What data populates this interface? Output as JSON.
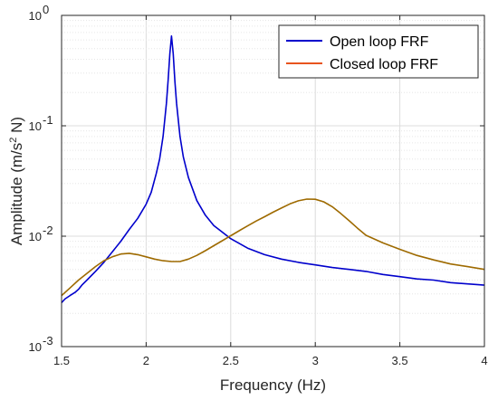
{
  "chart_data": {
    "type": "line",
    "title": "",
    "xlabel": "Frequency (Hz)",
    "ylabel": {
      "prefix": "Amplitude (m/s",
      "superscript": "2",
      "suffix": " N)"
    },
    "xlim": [
      1.5,
      4
    ],
    "ylim": [
      0.001,
      1
    ],
    "yscale": "log",
    "xticks": [
      1.5,
      2,
      2.5,
      3,
      3.5,
      4
    ],
    "xtick_labels": [
      "1.5",
      "2",
      "2.5",
      "3",
      "3.5",
      "4"
    ],
    "yticks": [
      {
        "value": 0.001,
        "base": "10",
        "exp": "-3"
      },
      {
        "value": 0.01,
        "base": "10",
        "exp": "-2"
      },
      {
        "value": 0.1,
        "base": "10",
        "exp": "-1"
      },
      {
        "value": 1,
        "base": "10",
        "exp": "0"
      }
    ],
    "grid": true,
    "legend": "top-right",
    "series": [
      {
        "name": "Open loop FRF",
        "color": "#0000cc",
        "x": [
          1.5,
          1.52,
          1.55,
          1.58,
          1.6,
          1.62,
          1.65,
          1.7,
          1.75,
          1.8,
          1.85,
          1.9,
          1.95,
          2.0,
          2.03,
          2.06,
          2.08,
          2.1,
          2.12,
          2.13,
          2.14,
          2.15,
          2.16,
          2.17,
          2.18,
          2.2,
          2.22,
          2.25,
          2.3,
          2.35,
          2.4,
          2.5,
          2.6,
          2.7,
          2.8,
          2.9,
          3.0,
          3.1,
          3.2,
          3.3,
          3.4,
          3.5,
          3.6,
          3.7,
          3.8,
          3.9,
          4.0
        ],
        "y": [
          0.0025,
          0.0027,
          0.0029,
          0.0031,
          0.0033,
          0.0036,
          0.004,
          0.0048,
          0.0058,
          0.0072,
          0.009,
          0.0115,
          0.0145,
          0.0195,
          0.025,
          0.037,
          0.05,
          0.08,
          0.16,
          0.26,
          0.45,
          0.65,
          0.45,
          0.25,
          0.16,
          0.08,
          0.052,
          0.034,
          0.021,
          0.0155,
          0.0125,
          0.0095,
          0.0078,
          0.0068,
          0.0062,
          0.0058,
          0.0055,
          0.0052,
          0.005,
          0.0048,
          0.0045,
          0.0043,
          0.0041,
          0.004,
          0.0038,
          0.0037,
          0.0036
        ]
      },
      {
        "name": "Closed loop FRF",
        "color": "#e8541e",
        "overlap_color": "#9e6a00",
        "x": [
          1.5,
          1.55,
          1.6,
          1.65,
          1.7,
          1.75,
          1.8,
          1.85,
          1.9,
          1.95,
          2.0,
          2.05,
          2.1,
          2.15,
          2.2,
          2.25,
          2.3,
          2.35,
          2.4,
          2.45,
          2.5,
          2.55,
          2.6,
          2.65,
          2.7,
          2.75,
          2.8,
          2.85,
          2.9,
          2.95,
          3.0,
          3.05,
          3.1,
          3.15,
          3.2,
          3.25,
          3.3,
          3.4,
          3.5,
          3.6,
          3.7,
          3.8,
          3.9,
          4.0
        ],
        "y": [
          0.0029,
          0.0034,
          0.004,
          0.0046,
          0.0053,
          0.006,
          0.0065,
          0.0069,
          0.007,
          0.0068,
          0.0065,
          0.0062,
          0.006,
          0.0059,
          0.0059,
          0.0062,
          0.0067,
          0.0074,
          0.0082,
          0.0091,
          0.0101,
          0.0112,
          0.0124,
          0.0137,
          0.015,
          0.0165,
          0.018,
          0.0196,
          0.0209,
          0.0217,
          0.0216,
          0.0205,
          0.0185,
          0.0161,
          0.0138,
          0.0118,
          0.0102,
          0.0087,
          0.0076,
          0.0067,
          0.0061,
          0.0056,
          0.0053,
          0.005
        ]
      }
    ]
  }
}
